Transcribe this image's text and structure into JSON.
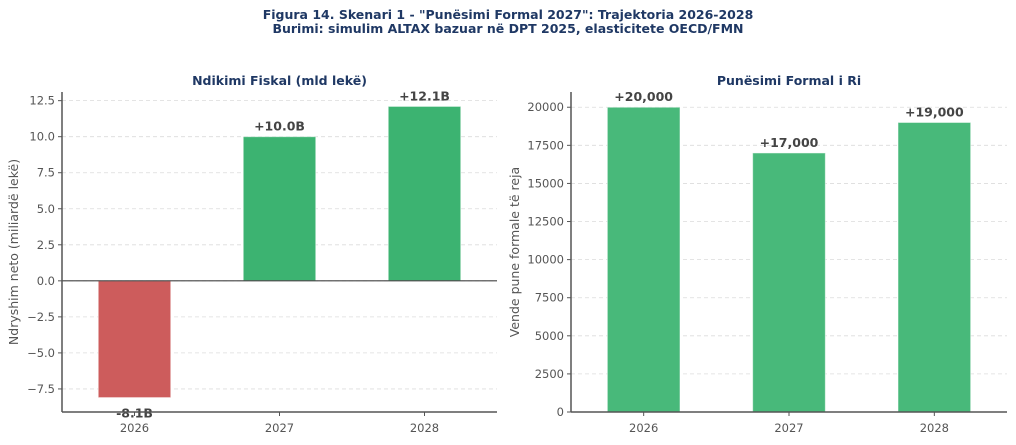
{
  "figure": {
    "title_line1": "Figura 14. Skenari 1 - \"Punësimi Formal 2027\": Trajektoria 2026-2028",
    "title_line2": "Burimi: simulim ALTAX bazuar në DPT 2025, elasticitete OECD/FMN"
  },
  "chart_data": [
    {
      "type": "bar",
      "title": "Ndikimi Fiskal (mld lekë)",
      "xlabel": "",
      "ylabel": "Ndryshim neto (miliardë lekë)",
      "categories": [
        "2026",
        "2027",
        "2028"
      ],
      "values": [
        -8.1,
        10.0,
        12.1
      ],
      "data_labels": [
        "-8.1B",
        "+10.0B",
        "+12.1B"
      ],
      "colors": [
        "#cd5c5c",
        "#3cb371",
        "#3cb371"
      ],
      "ylim": [
        -9.1,
        13.1
      ],
      "yticks": [
        -7.5,
        -5.0,
        -2.5,
        0.0,
        2.5,
        5.0,
        7.5,
        10.0,
        12.5
      ],
      "ytick_labels": [
        "−7.5",
        "−5.0",
        "−2.5",
        "0.0",
        "2.5",
        "5.0",
        "7.5",
        "10.0",
        "12.5"
      ],
      "grid": true,
      "zero_line": true
    },
    {
      "type": "bar",
      "title": "Punësimi Formal i Ri",
      "xlabel": "",
      "ylabel": "Vende pune formale të reja",
      "categories": [
        "2026",
        "2027",
        "2028"
      ],
      "values": [
        20000,
        17000,
        19000
      ],
      "data_labels": [
        "+20,000",
        "+17,000",
        "+19,000"
      ],
      "colors": [
        "#48b97a",
        "#48b97a",
        "#48b97a"
      ],
      "ylim": [
        0,
        21000
      ],
      "yticks": [
        0,
        2500,
        5000,
        7500,
        10000,
        12500,
        15000,
        17500,
        20000
      ],
      "ytick_labels": [
        "0",
        "2500",
        "5000",
        "7500",
        "10000",
        "12500",
        "15000",
        "17500",
        "20000"
      ],
      "grid": true,
      "zero_line": false
    }
  ]
}
